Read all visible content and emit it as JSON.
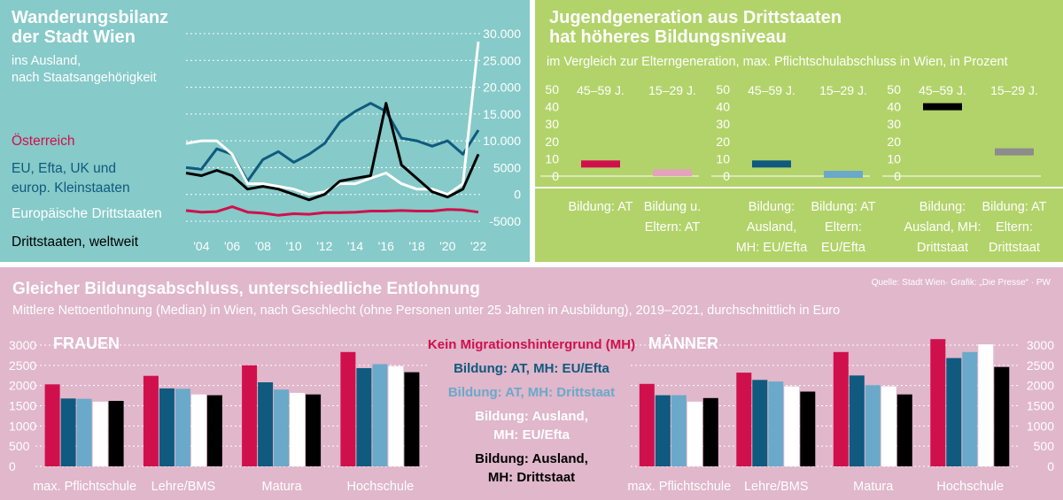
{
  "colors": {
    "austria": "#d0104c",
    "eu": "#0f5a7e",
    "euro_third": "#ffffff",
    "third": "#000000",
    "light_blue": "#6aa9c9",
    "pink_light": "#e3a3bb",
    "gray": "#8c8c8c"
  },
  "panel1": {
    "title": [
      "Wanderungsbilanz",
      "der Stadt Wien"
    ],
    "subtitle": [
      "ins Ausland,",
      "nach Staatsangehörigkeit"
    ],
    "legend": [
      "Österreich",
      "EU, Efta, UK und",
      "europ. Kleinstaaten",
      "Europäische Drittstaaten",
      "Drittstaaten, weltweit"
    ]
  },
  "panel2": {
    "title": [
      "Jugendgeneration aus Drittstaaten",
      "hat höheres Bildungsniveau"
    ],
    "subtitle": "im Vergleich zur Elterngeneration, max. Pflichtschulabschluss in Wien, in Prozent"
  },
  "panel3": {
    "title": "Gleicher Bildungsabschluss, unterschiedliche Entlohnung",
    "subtitle": "Mittlere Nettoentlohnung (Median) in Wien, nach Geschlecht (ohne Personen unter 25 Jahren in Ausbildung), 2019–2021, durchschnittlich in Euro",
    "source": "Quelle: Stadt Wien· Grafik: „Die Presse“ · PW",
    "frauen": "FRAUEN",
    "maenner": "MÄNNER",
    "legend": [
      {
        "lines": [
          "Kein Migrationshintergrund (MH)"
        ],
        "color": "#d0104c"
      },
      {
        "lines": [
          "Bildung: AT, MH: EU/Efta"
        ],
        "color": "#0f5a7e"
      },
      {
        "lines": [
          "Bildung: AT, MH: Drittstaat"
        ],
        "color": "#6aa9c9"
      },
      {
        "lines": [
          "Bildung: Ausland,",
          "MH: EU/Efta"
        ],
        "color": "#ffffff"
      },
      {
        "lines": [
          "Bildung: Ausland,",
          "MH: Drittstaat"
        ],
        "color": "#000000"
      }
    ]
  },
  "chart_data": [
    {
      "type": "line",
      "title": "Wanderungsbilanz der Stadt Wien",
      "x": [
        2003,
        2004,
        2005,
        2006,
        2007,
        2008,
        2009,
        2010,
        2011,
        2012,
        2013,
        2014,
        2015,
        2016,
        2017,
        2018,
        2019,
        2020,
        2021,
        2022
      ],
      "x_tick_labels": [
        "'04",
        "'06",
        "'08",
        "'10",
        "'12",
        "'14",
        "'16",
        "'18",
        "'20",
        "'22"
      ],
      "x_tick_values": [
        2004,
        2006,
        2008,
        2010,
        2012,
        2014,
        2016,
        2018,
        2020,
        2022
      ],
      "y_ticks": [
        -5000,
        0,
        5000,
        10000,
        15000,
        20000,
        25000,
        30000
      ],
      "y_tick_labels": [
        "-5000",
        "0",
        "5000",
        "10.000",
        "15.000",
        "20.000",
        "25.000",
        "30.000"
      ],
      "ylim": [
        -5000,
        30000
      ],
      "series": [
        {
          "name": "Österreich",
          "color": "#d0104c",
          "values": [
            -3000,
            -3300,
            -3200,
            -2300,
            -3300,
            -3500,
            -3900,
            -3600,
            -3700,
            -3400,
            -3400,
            -3300,
            -3100,
            -3100,
            -3000,
            -3100,
            -3100,
            -2800,
            -2900,
            -3300
          ]
        },
        {
          "name": "EU, Efta, UK und europ. Kleinstaaten",
          "color": "#0f5a7e",
          "values": [
            5000,
            4700,
            8500,
            7500,
            2500,
            6500,
            8000,
            6000,
            7500,
            9500,
            13500,
            15500,
            17000,
            15500,
            10500,
            10000,
            9000,
            10000,
            7500,
            12000
          ]
        },
        {
          "name": "Europäische Drittstaaten",
          "color": "#ffffff",
          "values": [
            9500,
            10000,
            10000,
            7500,
            2000,
            2000,
            1500,
            1000,
            0,
            500,
            2000,
            2000,
            3000,
            4000,
            2000,
            1000,
            1000,
            0,
            2000,
            28500
          ]
        },
        {
          "name": "Drittstaaten, weltweit",
          "color": "#000000",
          "values": [
            4000,
            3500,
            4500,
            3500,
            1000,
            1500,
            1000,
            0,
            -1000,
            0,
            2500,
            3000,
            3500,
            17000,
            5500,
            3000,
            500,
            -500,
            1000,
            7500
          ]
        }
      ]
    },
    {
      "type": "bar",
      "title": "Jugendgeneration aus Drittstaaten hat höheres Bildungsniveau",
      "note": "floating bars",
      "y_ticks": [
        0,
        10,
        20,
        30,
        40,
        50
      ],
      "ylim": [
        0,
        50
      ],
      "groups": [
        {
          "label_lines": [
            "Bildung: AT"
          ],
          "bars": [
            {
              "age": "45–59 J.",
              "value": 7,
              "color": "#d0104c"
            },
            {
              "age": "15–29 J.",
              "value": 2,
              "color": "#e3a3bb"
            }
          ],
          "second_label_lines": [
            "Bildung u.",
            "Eltern: AT"
          ]
        },
        {
          "label_lines": [
            "Bildung:",
            "Ausland,",
            "MH: EU/Efta"
          ],
          "bars": [
            {
              "age": "45–59 J.",
              "value": 7,
              "color": "#0f5a7e"
            },
            {
              "age": "15–29 J.",
              "value": 1,
              "color": "#6aa9c9"
            }
          ],
          "second_label_lines": [
            "Bildung: AT",
            "Eltern:",
            "EU/Efta"
          ]
        },
        {
          "label_lines": [
            "Bildung:",
            "Ausland, MH:",
            "Drittstaat"
          ],
          "bars": [
            {
              "age": "45–59 J.",
              "value": 40,
              "color": "#000000"
            },
            {
              "age": "15–29 J.",
              "value": 14,
              "color": "#8c8c8c"
            }
          ],
          "second_label_lines": [
            "Bildung: AT",
            "Eltern:",
            "Drittstaat"
          ]
        }
      ]
    },
    {
      "type": "bar",
      "title": "FRAUEN",
      "categories": [
        "max. Pflichtschule",
        "Lehre/BMS",
        "Matura",
        "Hochschule"
      ],
      "y_ticks": [
        0,
        500,
        1000,
        1500,
        2000,
        2500,
        3000
      ],
      "ylim": [
        0,
        3000
      ],
      "series": [
        {
          "name": "Kein Migrationshintergrund (MH)",
          "color": "#d0104c",
          "values": [
            2030,
            2240,
            2500,
            2830
          ]
        },
        {
          "name": "Bildung: AT, MH: EU/Efta",
          "color": "#0f5a7e",
          "values": [
            1680,
            1930,
            2080,
            2430
          ]
        },
        {
          "name": "Bildung: AT, MH: Drittstaat",
          "color": "#6aa9c9",
          "values": [
            1670,
            1920,
            1900,
            2530
          ]
        },
        {
          "name": "Bildung: Ausland, MH: EU/Efta",
          "color": "#ffffff",
          "values": [
            1600,
            1780,
            1820,
            2480
          ]
        },
        {
          "name": "Bildung: Ausland, MH: Drittstaat",
          "color": "#000000",
          "values": [
            1620,
            1760,
            1780,
            2330
          ]
        }
      ]
    },
    {
      "type": "bar",
      "title": "MÄNNER",
      "categories": [
        "max. Pflichtschule",
        "Lehre/BMS",
        "Matura",
        "Hochschule"
      ],
      "y_ticks": [
        0,
        500,
        1000,
        1500,
        2000,
        2500,
        3000
      ],
      "ylim": [
        0,
        3000
      ],
      "series": [
        {
          "name": "Kein Migrationshintergrund (MH)",
          "color": "#d0104c",
          "values": [
            2040,
            2320,
            2830,
            3150
          ]
        },
        {
          "name": "Bildung: AT, MH: EU/Efta",
          "color": "#0f5a7e",
          "values": [
            1760,
            2140,
            2250,
            2680
          ]
        },
        {
          "name": "Bildung: AT, MH: Drittstaat",
          "color": "#6aa9c9",
          "values": [
            1760,
            2100,
            2010,
            2830
          ]
        },
        {
          "name": "Bildung: Ausland, MH: EU/Efta",
          "color": "#ffffff",
          "values": [
            1600,
            1980,
            1980,
            3020
          ]
        },
        {
          "name": "Bildung: Ausland, MH: Drittstaat",
          "color": "#000000",
          "values": [
            1690,
            1850,
            1780,
            2460
          ]
        }
      ]
    }
  ]
}
